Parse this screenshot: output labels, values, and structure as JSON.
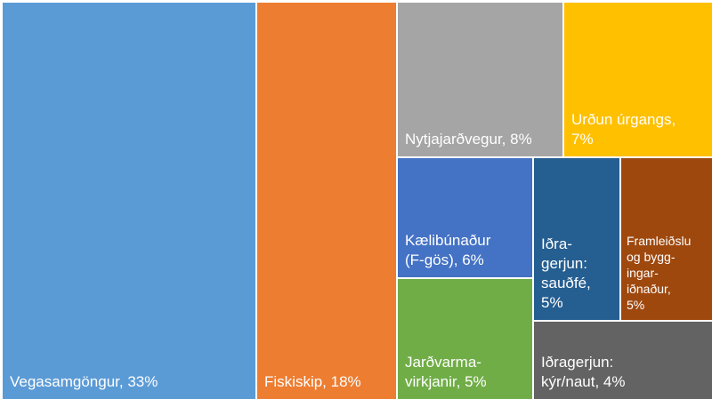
{
  "chart_data": {
    "type": "treemap",
    "labels": [
      "Vegasamgöngur, 33%",
      "Fiskiskip, 18%",
      "Nytjajarðvegur, 8%",
      "Urðun úrgangs,\n7%",
      "Kælibúnaður\n(F-gös), 6%",
      "Jarðvarma-\nvirkjanir, 5%",
      "Iðra-\ngerjun:\nsauðfé,\n5%",
      "Framleiðslu\nog bygg-\ningar-\niðnaður,\n5%",
      "Iðragerjun:\nkýr/naut, 4%"
    ],
    "values": [
      33,
      18,
      8,
      7,
      6,
      5,
      5,
      5,
      4
    ],
    "colors": [
      "#5b9bd5",
      "#ed7d31",
      "#a5a5a5",
      "#ffc000",
      "#4472c4",
      "#70ad47",
      "#255e91",
      "#9e480e",
      "#636363"
    ]
  }
}
